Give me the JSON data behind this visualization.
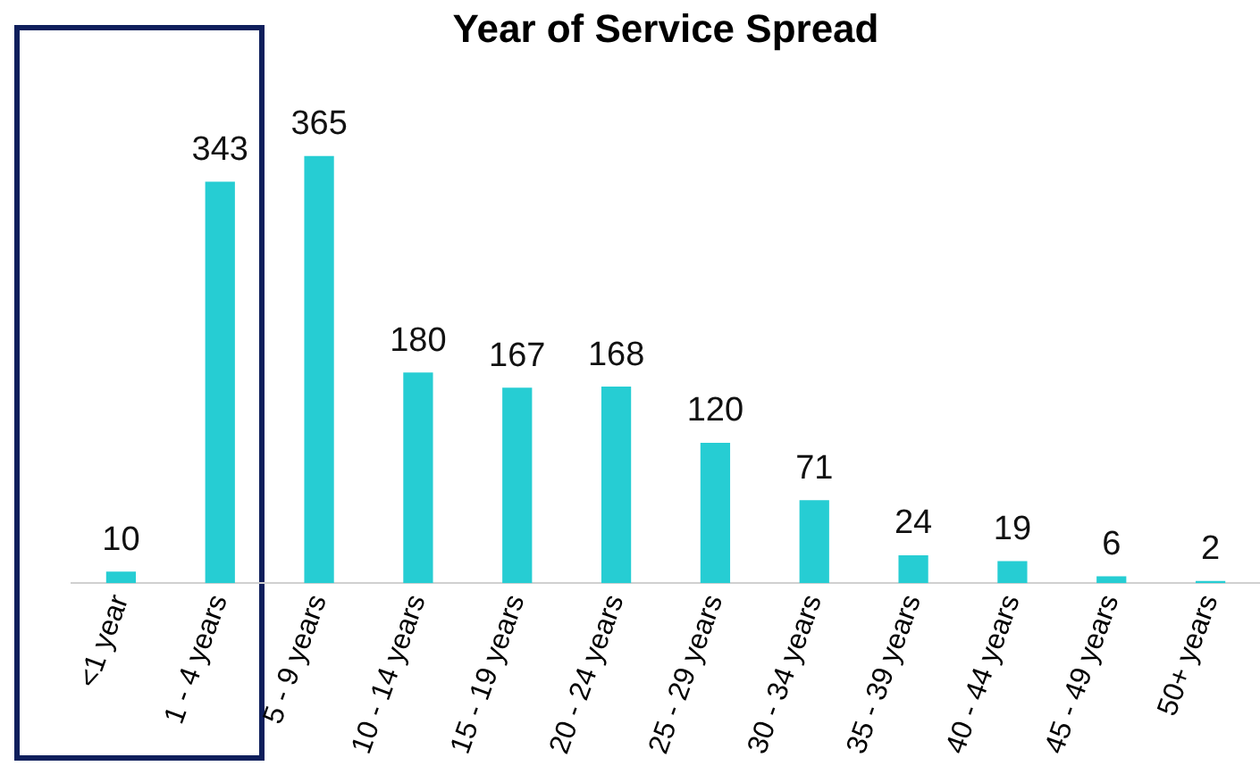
{
  "chart_data": {
    "type": "bar",
    "title": "Year of Service Spread",
    "categories": [
      "<1 year",
      "1 - 4 years",
      "5 - 9 years",
      "10 - 14 years",
      "15 - 19 years",
      "20 - 24 years",
      "25 - 29 years",
      "30 - 34 years",
      "35 - 39 years",
      "40 - 44 years",
      "45 - 49 years",
      "50+ years"
    ],
    "values": [
      10,
      343,
      365,
      180,
      167,
      168,
      120,
      71,
      24,
      19,
      6,
      2
    ],
    "color": "#26cdd3",
    "data_labels": true,
    "grid": false,
    "legend": false
  }
}
